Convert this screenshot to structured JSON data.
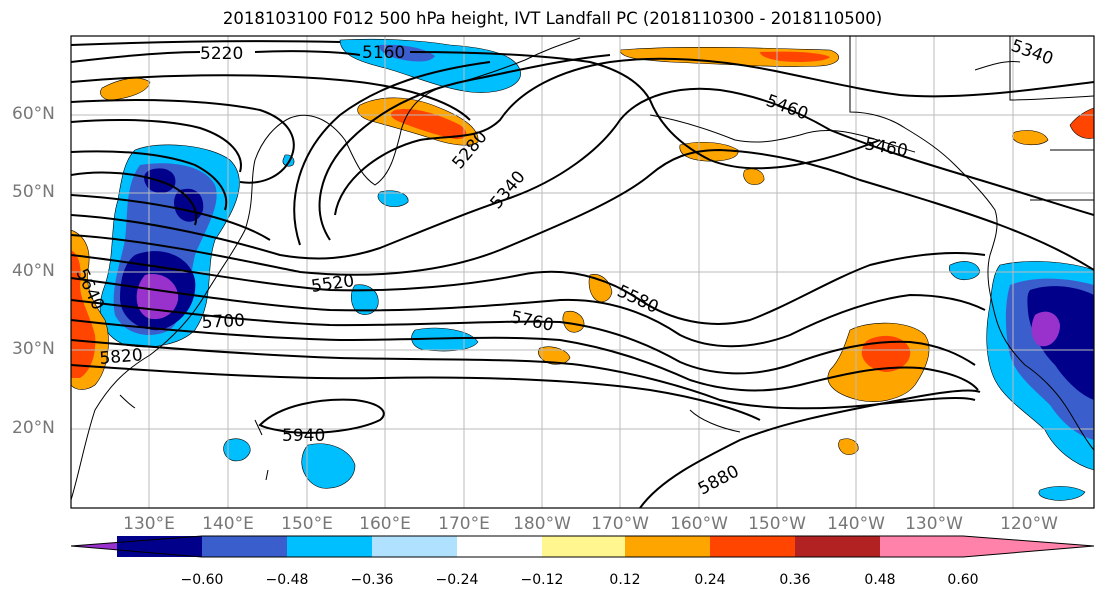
{
  "title": "2018103100 F012 500 hPa height, IVT Landfall PC (2018110300 - 2018110500)",
  "lat_labels": [
    "60°N",
    "50°N",
    "40°N",
    "30°N",
    "20°N"
  ],
  "lon_labels": [
    "130°E",
    "140°E",
    "150°E",
    "160°E",
    "170°E",
    "180°W",
    "170°W",
    "160°W",
    "150°W",
    "140°W",
    "130°W",
    "120°W"
  ],
  "colorbar": {
    "colors": [
      "#9932cc",
      "#00008b",
      "#3a5fcd",
      "#00bfff",
      "#b0e2ff",
      "#ffffff",
      "#fff68f",
      "#ffa500",
      "#ff4500",
      "#b22222",
      "#ff82ab"
    ],
    "tick_labels": [
      "−0.60",
      "−0.48",
      "−0.36",
      "−0.24",
      "−0.12",
      "0.12",
      "0.24",
      "0.36",
      "0.48",
      "0.60"
    ]
  },
  "contour_labels": [
    "5220",
    "5160",
    "5340",
    "5280",
    "5340",
    "5460",
    "5460",
    "5520",
    "5580",
    "5640",
    "5700",
    "5760",
    "5820",
    "5940",
    "5880"
  ]
}
